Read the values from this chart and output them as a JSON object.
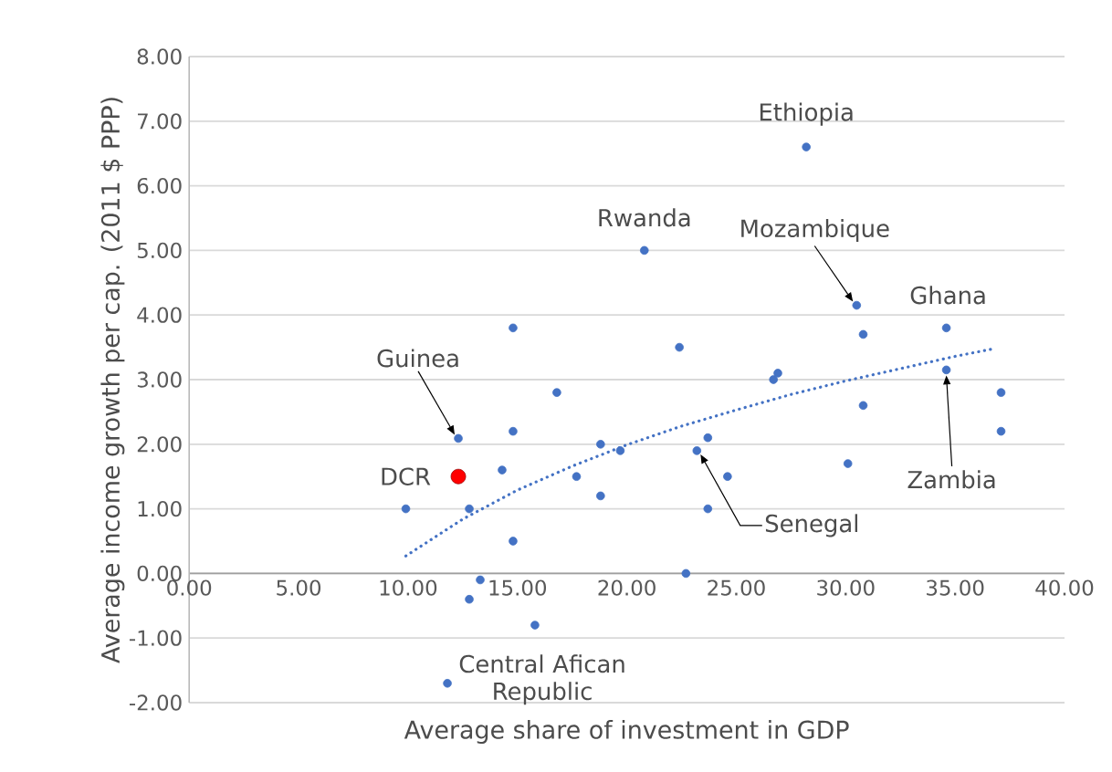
{
  "chart_data": {
    "type": "scatter",
    "xlabel": "Average share of investment in GDP",
    "ylabel": "Average income growth per cap. (2011 $ PPP)",
    "xlim": [
      0,
      40
    ],
    "ylim": [
      -2,
      8
    ],
    "xticks": [
      {
        "value": 0,
        "label": "0.00"
      },
      {
        "value": 5,
        "label": "5.00"
      },
      {
        "value": 10,
        "label": "10.00"
      },
      {
        "value": 15,
        "label": "15.00"
      },
      {
        "value": 20,
        "label": "20.00"
      },
      {
        "value": 25,
        "label": "25.00"
      },
      {
        "value": 30,
        "label": "30.00"
      },
      {
        "value": 35,
        "label": "35.00"
      },
      {
        "value": 40,
        "label": "40.00"
      }
    ],
    "yticks": [
      {
        "value": -2,
        "label": "-2.00"
      },
      {
        "value": -1,
        "label": "-1.00"
      },
      {
        "value": 0,
        "label": "0.00"
      },
      {
        "value": 1,
        "label": "1.00"
      },
      {
        "value": 2,
        "label": "2.00"
      },
      {
        "value": 3,
        "label": "3.00"
      },
      {
        "value": 4,
        "label": "4.00"
      },
      {
        "value": 5,
        "label": "5.00"
      },
      {
        "value": 6,
        "label": "6.00"
      },
      {
        "value": 7,
        "label": "7.00"
      },
      {
        "value": 8,
        "label": "8.00"
      }
    ],
    "grid": "y",
    "marker": "circle",
    "series": [
      {
        "color": "#4472c4",
        "x": [
          9.9,
          12.3,
          12.8,
          13.3,
          12.8,
          11.8,
          14.3,
          14.8,
          14.8,
          14.8,
          15.8,
          16.8,
          17.7,
          18.8,
          18.8,
          19.7,
          20.8,
          22.4,
          22.7,
          23.2,
          23.7,
          23.7,
          24.6,
          26.7,
          26.9,
          28.2,
          30.1,
          30.5,
          30.8,
          30.8,
          34.6,
          34.6,
          37.1,
          37.1
        ],
        "values": [
          1.0,
          2.09,
          1.0,
          -0.1,
          -0.4,
          -1.7,
          1.6,
          3.8,
          2.2,
          0.5,
          -0.8,
          2.8,
          1.5,
          2.0,
          1.2,
          1.9,
          5.0,
          3.5,
          0.0,
          1.9,
          2.1,
          1.0,
          1.5,
          3.0,
          3.1,
          6.6,
          1.7,
          4.15,
          3.7,
          2.6,
          3.8,
          3.15,
          2.8,
          2.2
        ]
      },
      {
        "color": "#ff0000",
        "x": [
          12.3
        ],
        "values": [
          1.5
        ]
      },
      {
        "type": "line",
        "color": "#4472c4",
        "line_style": "dotted",
        "marker": "none",
        "x": [
          9.9,
          12.5,
          15,
          17.5,
          20,
          22.5,
          25,
          27.5,
          30,
          32.5,
          35,
          36.8
        ],
        "values": [
          0.27,
          0.84,
          1.29,
          1.66,
          1.99,
          2.28,
          2.53,
          2.77,
          2.98,
          3.17,
          3.36,
          3.48
        ]
      }
    ],
    "annotations": [
      {
        "text": "Ethiopia",
        "x": 28.2,
        "y": 6.6
      },
      {
        "text": "Rwanda",
        "x": 20.8,
        "y": 5.0
      },
      {
        "text": "Mozambique",
        "x": 30.5,
        "y": 4.15
      },
      {
        "text": "Ghana",
        "x": 34.6,
        "y": 3.8
      },
      {
        "text": "Guinea",
        "x": 12.3,
        "y": 2.09
      },
      {
        "text": "DCR",
        "x": 12.3,
        "y": 1.5
      },
      {
        "text": "Zambia",
        "x": 34.6,
        "y": 3.15
      },
      {
        "text": "Senegal",
        "x": 23.2,
        "y": 1.9
      },
      {
        "text": "Central Afican Republic",
        "x": 11.8,
        "y": -1.7
      }
    ]
  }
}
